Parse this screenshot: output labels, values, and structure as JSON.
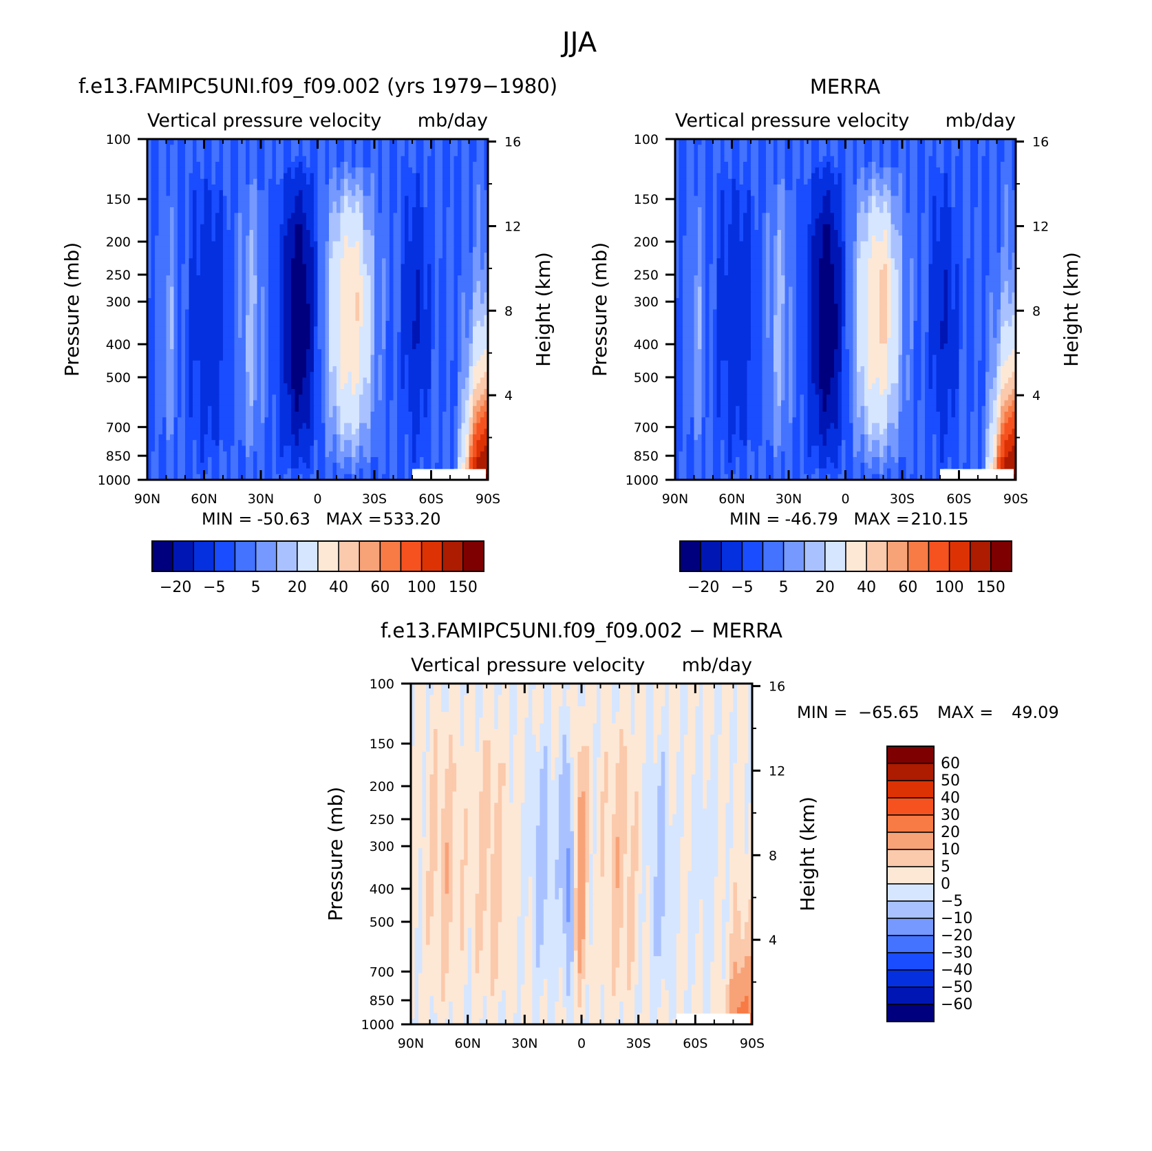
{
  "figure": {
    "title": "JJA"
  },
  "chart_data": [
    {
      "type": "heatmap",
      "id": "model",
      "title": "f.e13.FAMIPC5UNI.f09_f09.002 (yrs 1979−1980)",
      "subtitle_left": "Vertical pressure velocity",
      "subtitle_right": "mb/day",
      "xlabel": "",
      "ylabel": "Pressure (mb)",
      "y2label": "Height (km)",
      "x_ticks": [
        "90N",
        "60N",
        "30N",
        "0",
        "30S",
        "60S",
        "90S"
      ],
      "y_ticks": [
        "100",
        "150",
        "200",
        "250",
        "300",
        "400",
        "500",
        "700",
        "850",
        "1000"
      ],
      "y2_ticks": [
        "16",
        "12",
        "8",
        "4"
      ],
      "xlim": [
        90,
        -90
      ],
      "ylim": [
        1000,
        100
      ],
      "y_scale": "log",
      "min": "-50.63",
      "max": "533.20",
      "stats_min_label": "MIN =",
      "stats_max_label": "MAX =",
      "colorbar": {
        "orientation": "horizontal",
        "tick_labels": [
          "−20",
          "−5",
          "5",
          "20",
          "40",
          "60",
          "100",
          "150"
        ]
      }
    },
    {
      "type": "heatmap",
      "id": "merra",
      "title": "MERRA",
      "subtitle_left": "Vertical pressure velocity",
      "subtitle_right": "mb/day",
      "xlabel": "",
      "ylabel": "Pressure (mb)",
      "y2label": "Height (km)",
      "x_ticks": [
        "90N",
        "60N",
        "30N",
        "0",
        "30S",
        "60S",
        "90S"
      ],
      "y_ticks": [
        "100",
        "150",
        "200",
        "250",
        "300",
        "400",
        "500",
        "700",
        "850",
        "1000"
      ],
      "y2_ticks": [
        "16",
        "12",
        "8",
        "4"
      ],
      "xlim": [
        90,
        -90
      ],
      "ylim": [
        1000,
        100
      ],
      "y_scale": "log",
      "min": "-46.79",
      "max": "210.15",
      "stats_min_label": "MIN =",
      "stats_max_label": "MAX =",
      "colorbar": {
        "orientation": "horizontal",
        "tick_labels": [
          "−20",
          "−5",
          "5",
          "20",
          "40",
          "60",
          "100",
          "150"
        ]
      }
    },
    {
      "type": "heatmap",
      "id": "diff",
      "title": "f.e13.FAMIPC5UNI.f09_f09.002 − MERRA",
      "subtitle_left": "Vertical pressure velocity",
      "subtitle_right": "mb/day",
      "xlabel": "",
      "ylabel": "Pressure (mb)",
      "y2label": "Height (km)",
      "x_ticks": [
        "90N",
        "60N",
        "30N",
        "0",
        "30S",
        "60S",
        "90S"
      ],
      "y_ticks": [
        "100",
        "150",
        "200",
        "250",
        "300",
        "400",
        "500",
        "700",
        "850",
        "1000"
      ],
      "y2_ticks": [
        "16",
        "12",
        "8",
        "4"
      ],
      "xlim": [
        90,
        -90
      ],
      "ylim": [
        1000,
        100
      ],
      "y_scale": "log",
      "min": "−65.65",
      "max": "49.09",
      "stats_min_label": "MIN =",
      "stats_max_label": "MAX =",
      "colorbar": {
        "orientation": "vertical",
        "tick_labels": [
          "60",
          "50",
          "40",
          "30",
          "20",
          "10",
          "5",
          "0",
          "−5",
          "−10",
          "−20",
          "−30",
          "−40",
          "−50",
          "−60"
        ]
      }
    }
  ],
  "palette": {
    "full": [
      "#00007f",
      "#0016b4",
      "#0530e0",
      "#1a4dff",
      "#4373ff",
      "#7599ff",
      "#a9c2ff",
      "#d6e6ff",
      "#fde8d6",
      "#fbc9ab",
      "#f8a278",
      "#f87a45",
      "#f65220",
      "#dd3204",
      "#ad1b00",
      "#7f0000"
    ]
  }
}
